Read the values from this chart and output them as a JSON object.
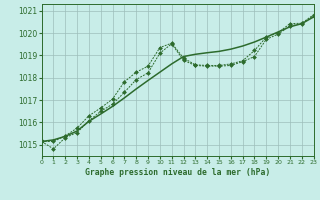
{
  "title": "Graphe pression niveau de la mer (hPa)",
  "bg_color": "#c8ede8",
  "grid_color": "#9dbfbb",
  "line_color": "#2d6b2d",
  "xlim": [
    0,
    23
  ],
  "ylim": [
    1014.5,
    1021.3
  ],
  "yticks": [
    1015,
    1016,
    1017,
    1018,
    1019,
    1020,
    1021
  ],
  "xticks": [
    0,
    1,
    2,
    3,
    4,
    5,
    6,
    7,
    8,
    9,
    10,
    11,
    12,
    13,
    14,
    15,
    16,
    17,
    18,
    19,
    20,
    21,
    22,
    23
  ],
  "s1_x": [
    0,
    1,
    2,
    3,
    4,
    5,
    6,
    7,
    8,
    9,
    10,
    11,
    12,
    13,
    14,
    15,
    16,
    17,
    18,
    19,
    20,
    21,
    22,
    23
  ],
  "s1_y": [
    1015.15,
    1015.15,
    1015.4,
    1015.75,
    1016.3,
    1016.65,
    1017.05,
    1017.82,
    1018.25,
    1018.52,
    1019.35,
    1019.55,
    1018.88,
    1018.58,
    1018.55,
    1018.55,
    1018.62,
    1018.76,
    1019.22,
    1019.82,
    1020.02,
    1020.42,
    1020.44,
    1020.82
  ],
  "s2_x": [
    0,
    1,
    2,
    3,
    4,
    5,
    6,
    7,
    8,
    9,
    10,
    11,
    12,
    13,
    14,
    15,
    16,
    17,
    18,
    19,
    20,
    21,
    22,
    23
  ],
  "s2_y": [
    1015.15,
    1014.82,
    1015.32,
    1015.55,
    1016.08,
    1016.5,
    1016.82,
    1017.35,
    1017.92,
    1018.22,
    1019.1,
    1019.52,
    1018.78,
    1018.55,
    1018.52,
    1018.52,
    1018.55,
    1018.72,
    1018.95,
    1019.72,
    1019.95,
    1020.32,
    1020.42,
    1020.78
  ],
  "s3_x": [
    0,
    1,
    2,
    3,
    4,
    5,
    6,
    7,
    8,
    9,
    10,
    11,
    12,
    13,
    14,
    15,
    16,
    17,
    18,
    19,
    20,
    21,
    22,
    23
  ],
  "s3_y": [
    1015.15,
    1015.22,
    1015.38,
    1015.62,
    1016.05,
    1016.38,
    1016.72,
    1017.1,
    1017.5,
    1017.88,
    1018.25,
    1018.62,
    1018.95,
    1019.05,
    1019.12,
    1019.18,
    1019.28,
    1019.42,
    1019.6,
    1019.82,
    1020.05,
    1020.28,
    1020.42,
    1020.72
  ]
}
